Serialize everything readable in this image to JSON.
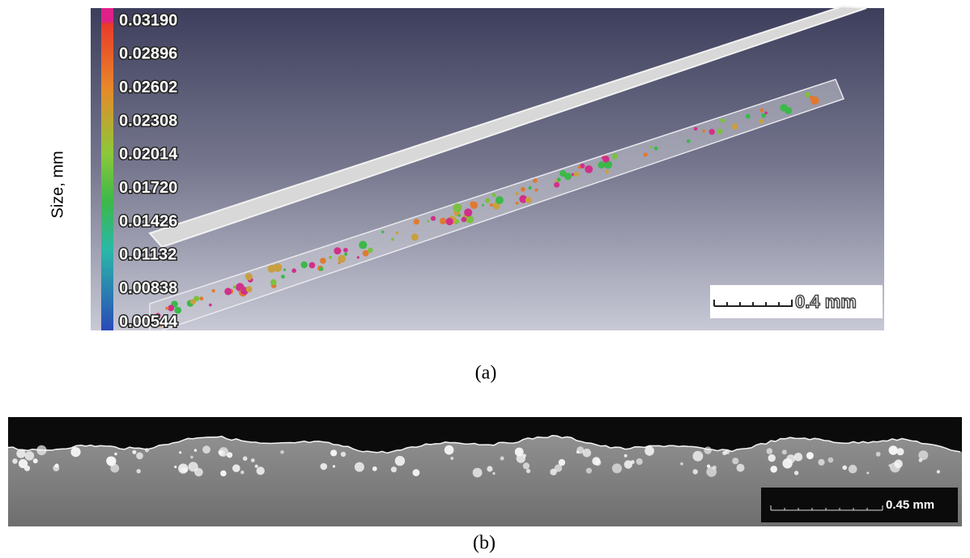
{
  "panel_a": {
    "axis_label": "Size, mm",
    "colorbar_labels": [
      "0.03190",
      "0.02896",
      "0.02602",
      "0.02308",
      "0.02014",
      "0.01720",
      "0.01426",
      "0.01132",
      "0.00838",
      "0.00544"
    ],
    "scale_bar": "0.4 mm",
    "caption": "(a)"
  },
  "panel_b": {
    "scale_bar": "0.45 mm",
    "caption": "(b)"
  }
}
